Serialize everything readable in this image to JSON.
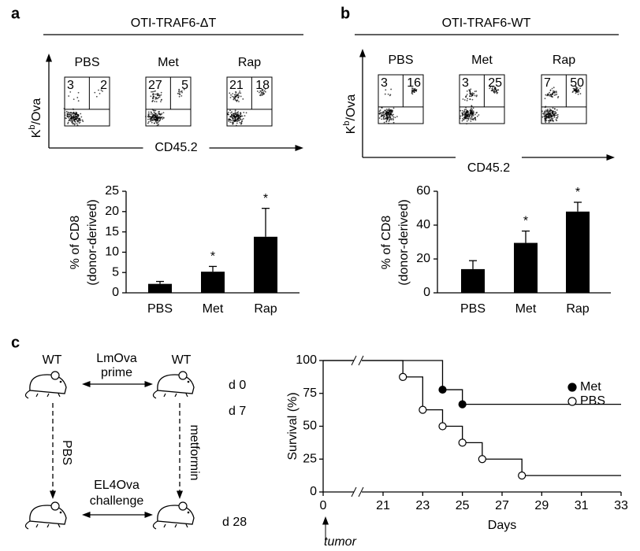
{
  "panel_labels": [
    "a",
    "b",
    "c"
  ],
  "flow": [
    {
      "title": "OTI-TRAF6-ΔT",
      "ylabel": {
        "base": "K",
        "sup": "b",
        "rest": "/Ova"
      },
      "xlabel": "CD45.2",
      "plots": [
        {
          "label": "PBS",
          "left": 3,
          "right": 2
        },
        {
          "label": "Met",
          "left": 27,
          "right": 5
        },
        {
          "label": "Rap",
          "left": 21,
          "right": 18
        }
      ]
    },
    {
      "title": "OTI-TRAF6-WT",
      "ylabel": {
        "base": "K",
        "sup": "b",
        "rest": "/Ova"
      },
      "xlabel": "CD45.2",
      "plots": [
        {
          "label": "PBS",
          "left": 3,
          "right": 16
        },
        {
          "label": "Met",
          "left": 3,
          "right": 25
        },
        {
          "label": "Rap",
          "left": 7,
          "right": 50
        }
      ]
    }
  ],
  "diagram": {
    "top_left": "WT",
    "top_right": "WT",
    "top_arrow": [
      "LmOva",
      "prime"
    ],
    "bottom_arrow": [
      "EL4Ova",
      "challenge"
    ],
    "left_arrow": "PBS",
    "right_arrow": "metformin",
    "days": [
      "d 0",
      "d 7",
      "d 28"
    ]
  },
  "chart_data": [
    {
      "type": "bar",
      "ylabel": [
        "% of CD8",
        "(donor-derived)"
      ],
      "categories": [
        "PBS",
        "Met",
        "Rap"
      ],
      "values": [
        2.2,
        5.2,
        13.8
      ],
      "errors": [
        0.6,
        1.3,
        7
      ],
      "color": "#000000",
      "ylim": [
        0,
        25
      ],
      "yticks": [
        0,
        5,
        10,
        15,
        20,
        25
      ],
      "annotations": [
        {
          "x": "Met",
          "text": "*"
        },
        {
          "x": "Rap",
          "text": "*"
        }
      ]
    },
    {
      "type": "bar",
      "ylabel": [
        "% of CD8",
        "(donor-derived)"
      ],
      "categories": [
        "PBS",
        "Met",
        "Rap"
      ],
      "values": [
        14,
        29.5,
        48
      ],
      "errors": [
        5,
        7,
        5.5
      ],
      "color": "#000000",
      "ylim": [
        0,
        60
      ],
      "yticks": [
        0,
        20,
        40,
        60
      ],
      "annotations": [
        {
          "x": "Met",
          "text": "*"
        },
        {
          "x": "Rap",
          "text": "*"
        }
      ]
    },
    {
      "type": "line",
      "step": true,
      "x_break": true,
      "xlabel": "Days",
      "ylabel": "Survival (%)",
      "xlim": [
        0,
        33
      ],
      "xticks": [
        0,
        21,
        23,
        25,
        27,
        29,
        31,
        33
      ],
      "ylim": [
        0,
        100
      ],
      "yticks": [
        0,
        25,
        50,
        75,
        100
      ],
      "legend": "upper right",
      "series": [
        {
          "name": "Met",
          "color": "#000000",
          "marker_fill": "#000000",
          "x": [
            0,
            24,
            25,
            33
          ],
          "values": [
            100,
            77.8,
            66.7,
            66.7
          ]
        },
        {
          "name": "PBS",
          "color": "#000000",
          "marker_fill": "#ffffff",
          "x": [
            0,
            22,
            23,
            24,
            25,
            26,
            28,
            33
          ],
          "values": [
            100,
            87.5,
            62.5,
            50,
            37.5,
            25,
            12.5,
            12.5
          ]
        }
      ],
      "annotations": [
        {
          "x": 0,
          "text": "tumor"
        }
      ]
    }
  ]
}
